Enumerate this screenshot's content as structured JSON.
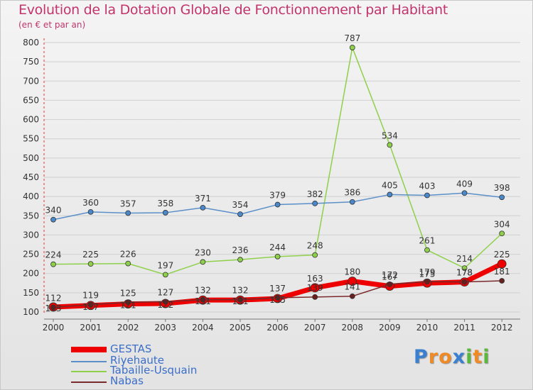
{
  "title": "Evolution de la Dotation Globale de Fonctionnement par Habitant",
  "subtitle": "(en € et par an)",
  "logo": {
    "text": "Proxiti",
    "letters": [
      "P",
      "r",
      "o",
      "x",
      "i",
      "t",
      "i"
    ],
    "colors": [
      "#3a7fd0",
      "#f08a24",
      "#f08a24",
      "#3a7fd0",
      "#5bb83c",
      "#f08a24",
      "#5bb83c"
    ]
  },
  "chart_data": {
    "type": "line",
    "x": [
      "2000",
      "2001",
      "2002",
      "2003",
      "2004",
      "2005",
      "2006",
      "2007",
      "2008",
      "2009",
      "2010",
      "2011",
      "2012"
    ],
    "ylim": [
      100,
      800
    ],
    "yticks": [
      "100",
      "150",
      "200",
      "250",
      "300",
      "350",
      "400",
      "450",
      "500",
      "550",
      "600",
      "650",
      "700",
      "750",
      "800"
    ],
    "grid": true,
    "legend_position": "bottom-left",
    "series": [
      {
        "name": "GESTAS",
        "color": "#ee0000",
        "values": [
          113,
          117,
          121,
          122,
          131,
          131,
          135,
          163,
          180,
          167,
          175,
          178,
          225
        ],
        "labels": [
          "113",
          "117",
          "121",
          "122",
          "131",
          "131",
          "135",
          "163",
          "180",
          "167",
          "175",
          "178",
          "225"
        ]
      },
      {
        "name": "Riyehaute",
        "color": "#5b8fc8",
        "values": [
          340,
          360,
          357,
          358,
          371,
          354,
          379,
          382,
          386,
          405,
          403,
          409,
          398
        ],
        "labels": [
          "340",
          "360",
          "357",
          "358",
          "371",
          "354",
          "379",
          "382",
          "386",
          "405",
          "403",
          "409",
          "398"
        ]
      },
      {
        "name": "Tabaille-Usquain",
        "color": "#8ed04a",
        "values": [
          224,
          225,
          226,
          197,
          230,
          236,
          244,
          248,
          787,
          534,
          261,
          214,
          304
        ],
        "labels": [
          "224",
          "225",
          "226",
          "197",
          "230",
          "236",
          "244",
          "248",
          "787",
          "534",
          "261",
          "214",
          "304"
        ]
      },
      {
        "name": "Nabas",
        "color": "#7a2a2a",
        "values": [
          112,
          119,
          125,
          127,
          132,
          132,
          137,
          139,
          141,
          172,
          179,
          178,
          181
        ],
        "labels": [
          "112",
          "119",
          "125",
          "127",
          "132",
          "132",
          "137",
          "139",
          "141",
          "172",
          "179",
          "178",
          "181"
        ]
      }
    ]
  }
}
